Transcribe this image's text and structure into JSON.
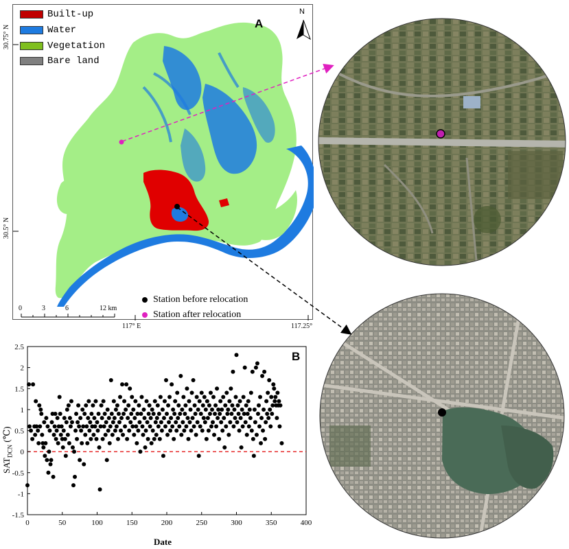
{
  "map_panel": {
    "letter": "A",
    "north_label": "N",
    "legend": [
      {
        "label": "Built-up",
        "color": "#c00000"
      },
      {
        "label": "Water",
        "color": "#1e7be0"
      },
      {
        "label": "Vegetation",
        "color": "#7fbf1f"
      },
      {
        "label": "Bare land",
        "color": "#808080"
      }
    ],
    "lat_ticks": [
      "30.75° N",
      "30.5° N"
    ],
    "lon_ticks": [
      "117° E",
      "117.25°"
    ],
    "scale_ticks": [
      "0",
      "3",
      "6",
      "12 km"
    ],
    "stations": [
      {
        "label": "Station before relocation",
        "color": "#000000"
      },
      {
        "label": "Station after relocation",
        "color": "#e020c0"
      }
    ],
    "colors": {
      "vegetation": "#a4ee87",
      "water": "#1e7be0",
      "built": "#e00000",
      "link_after": "#e020c0",
      "link_before": "#000000"
    }
  },
  "chart_panel": {
    "letter": "B"
  },
  "chart_data": {
    "type": "scatter",
    "xlabel": "Date",
    "ylabel": "SAT",
    "ylabel_sub": "DCN",
    "ylabel_unit": "(℃)",
    "xlim": [
      0,
      400
    ],
    "ylim": [
      -1.5,
      2.5
    ],
    "x_ticks": [
      "0",
      "50",
      "100",
      "150",
      "200",
      "250",
      "300",
      "350",
      "400"
    ],
    "y_ticks": [
      "-1.5",
      "-1",
      "-0.5",
      "0",
      "0.5",
      "1",
      "1.5",
      "2",
      "2.5"
    ],
    "reference_line": {
      "y": 0,
      "color": "#e00000",
      "style": "dashed"
    },
    "grid": false,
    "points": [
      [
        0,
        -0.8
      ],
      [
        2,
        1.6
      ],
      [
        3,
        0.6
      ],
      [
        5,
        0.5
      ],
      [
        7,
        0.3
      ],
      [
        8,
        1.6
      ],
      [
        10,
        0.6
      ],
      [
        11,
        0.4
      ],
      [
        12,
        1.2
      ],
      [
        13,
        0.6
      ],
      [
        15,
        0.5
      ],
      [
        16,
        0.2
      ],
      [
        17,
        1.1
      ],
      [
        18,
        0.6
      ],
      [
        19,
        1.0
      ],
      [
        20,
        0.9
      ],
      [
        21,
        0.4
      ],
      [
        22,
        0.2
      ],
      [
        23,
        0.1
      ],
      [
        24,
        0.7
      ],
      [
        25,
        -0.1
      ],
      [
        26,
        0.2
      ],
      [
        27,
        0.8
      ],
      [
        28,
        -0.2
      ],
      [
        29,
        0.6
      ],
      [
        30,
        -0.5
      ],
      [
        31,
        0.0
      ],
      [
        32,
        0.5
      ],
      [
        33,
        -0.3
      ],
      [
        34,
        -0.2
      ],
      [
        35,
        0.7
      ],
      [
        36,
        0.9
      ],
      [
        37,
        -0.6
      ],
      [
        38,
        0.4
      ],
      [
        39,
        0.6
      ],
      [
        40,
        0.9
      ],
      [
        41,
        0.3
      ],
      [
        42,
        0.5
      ],
      [
        43,
        0.8
      ],
      [
        44,
        0.2
      ],
      [
        45,
        0.6
      ],
      [
        46,
        1.3
      ],
      [
        47,
        0.9
      ],
      [
        48,
        0.4
      ],
      [
        49,
        0.6
      ],
      [
        50,
        0.3
      ],
      [
        51,
        0.1
      ],
      [
        52,
        0.5
      ],
      [
        53,
        0.8
      ],
      [
        54,
        0.3
      ],
      [
        55,
        -0.1
      ],
      [
        56,
        0.7
      ],
      [
        57,
        1.0
      ],
      [
        58,
        0.4
      ],
      [
        59,
        1.1
      ],
      [
        60,
        0.2
      ],
      [
        61,
        0.8
      ],
      [
        62,
        0.6
      ],
      [
        63,
        1.2
      ],
      [
        64,
        0.7
      ],
      [
        65,
        0.1
      ],
      [
        66,
        -0.8
      ],
      [
        67,
        0.0
      ],
      [
        68,
        -0.6
      ],
      [
        69,
        0.5
      ],
      [
        70,
        0.9
      ],
      [
        71,
        0.3
      ],
      [
        72,
        0.7
      ],
      [
        73,
        1.1
      ],
      [
        74,
        0.6
      ],
      [
        75,
        -0.2
      ],
      [
        76,
        0.8
      ],
      [
        77,
        0.5
      ],
      [
        78,
        0.2
      ],
      [
        79,
        1.0
      ],
      [
        80,
        0.6
      ],
      [
        81,
        -0.3
      ],
      [
        82,
        0.9
      ],
      [
        83,
        0.4
      ],
      [
        84,
        1.1
      ],
      [
        85,
        0.6
      ],
      [
        86,
        0.2
      ],
      [
        87,
        0.8
      ],
      [
        88,
        1.2
      ],
      [
        89,
        0.5
      ],
      [
        90,
        0.7
      ],
      [
        91,
        0.3
      ],
      [
        92,
        0.9
      ],
      [
        93,
        0.6
      ],
      [
        94,
        1.1
      ],
      [
        95,
        0.4
      ],
      [
        96,
        0.8
      ],
      [
        97,
        0.6
      ],
      [
        98,
        1.2
      ],
      [
        99,
        0.3
      ],
      [
        100,
        0.7
      ],
      [
        101,
        0.5
      ],
      [
        102,
        0.9
      ],
      [
        103,
        0.1
      ],
      [
        104,
        -0.9
      ],
      [
        105,
        0.6
      ],
      [
        106,
        1.1
      ],
      [
        107,
        0.8
      ],
      [
        108,
        0.3
      ],
      [
        109,
        1.2
      ],
      [
        110,
        0.6
      ],
      [
        111,
        0.9
      ],
      [
        112,
        0.4
      ],
      [
        113,
        0.7
      ],
      [
        114,
        -0.2
      ],
      [
        115,
        1.0
      ],
      [
        116,
        0.5
      ],
      [
        117,
        0.8
      ],
      [
        118,
        0.2
      ],
      [
        119,
        0.6
      ],
      [
        120,
        1.7
      ],
      [
        121,
        0.9
      ],
      [
        122,
        0.4
      ],
      [
        123,
        0.7
      ],
      [
        124,
        1.2
      ],
      [
        125,
        0.8
      ],
      [
        126,
        0.5
      ],
      [
        127,
        1.0
      ],
      [
        128,
        0.6
      ],
      [
        129,
        1.1
      ],
      [
        130,
        0.3
      ],
      [
        131,
        0.9
      ],
      [
        132,
        0.7
      ],
      [
        133,
        1.3
      ],
      [
        134,
        0.5
      ],
      [
        135,
        0.8
      ],
      [
        136,
        1.6
      ],
      [
        137,
        0.4
      ],
      [
        138,
        0.9
      ],
      [
        139,
        1.2
      ],
      [
        140,
        0.6
      ],
      [
        141,
        1.0
      ],
      [
        142,
        1.6
      ],
      [
        143,
        0.3
      ],
      [
        144,
        0.8
      ],
      [
        145,
        1.1
      ],
      [
        146,
        0.5
      ],
      [
        147,
        1.5
      ],
      [
        148,
        0.7
      ],
      [
        149,
        0.9
      ],
      [
        150,
        1.3
      ],
      [
        151,
        0.6
      ],
      [
        152,
        1.0
      ],
      [
        153,
        0.4
      ],
      [
        154,
        0.8
      ],
      [
        155,
        1.2
      ],
      [
        156,
        0.6
      ],
      [
        157,
        0.2
      ],
      [
        158,
        0.9
      ],
      [
        159,
        0.5
      ],
      [
        160,
        1.1
      ],
      [
        161,
        0.7
      ],
      [
        162,
        0.0
      ],
      [
        163,
        0.9
      ],
      [
        164,
        1.3
      ],
      [
        165,
        0.6
      ],
      [
        166,
        0.4
      ],
      [
        167,
        1.0
      ],
      [
        168,
        0.8
      ],
      [
        169,
        0.1
      ],
      [
        170,
        0.5
      ],
      [
        171,
        1.2
      ],
      [
        172,
        0.7
      ],
      [
        173,
        0.3
      ],
      [
        174,
        0.9
      ],
      [
        175,
        1.1
      ],
      [
        176,
        0.6
      ],
      [
        177,
        0.8
      ],
      [
        178,
        0.2
      ],
      [
        179,
        1.0
      ],
      [
        180,
        0.5
      ],
      [
        181,
        0.9
      ],
      [
        182,
        0.3
      ],
      [
        183,
        1.2
      ],
      [
        184,
        0.7
      ],
      [
        185,
        0.4
      ],
      [
        186,
        0.8
      ],
      [
        187,
        1.1
      ],
      [
        188,
        0.6
      ],
      [
        189,
        0.9
      ],
      [
        190,
        0.3
      ],
      [
        191,
        1.3
      ],
      [
        192,
        0.7
      ],
      [
        193,
        0.5
      ],
      [
        194,
        1.0
      ],
      [
        195,
        -0.1
      ],
      [
        196,
        0.8
      ],
      [
        197,
        1.2
      ],
      [
        198,
        0.6
      ],
      [
        199,
        1.7
      ],
      [
        200,
        0.9
      ],
      [
        201,
        0.4
      ],
      [
        202,
        1.1
      ],
      [
        203,
        0.7
      ],
      [
        204,
        1.3
      ],
      [
        205,
        0.5
      ],
      [
        206,
        0.8
      ],
      [
        207,
        1.6
      ],
      [
        208,
        0.6
      ],
      [
        209,
        1.0
      ],
      [
        210,
        0.3
      ],
      [
        211,
        0.9
      ],
      [
        212,
        1.2
      ],
      [
        213,
        0.7
      ],
      [
        214,
        0.5
      ],
      [
        215,
        1.4
      ],
      [
        216,
        0.8
      ],
      [
        217,
        1.1
      ],
      [
        218,
        0.6
      ],
      [
        219,
        0.9
      ],
      [
        220,
        1.8
      ],
      [
        221,
        0.4
      ],
      [
        222,
        1.0
      ],
      [
        223,
        0.7
      ],
      [
        224,
        1.3
      ],
      [
        225,
        0.5
      ],
      [
        226,
        0.9
      ],
      [
        227,
        1.1
      ],
      [
        228,
        0.6
      ],
      [
        229,
        1.5
      ],
      [
        230,
        0.8
      ],
      [
        231,
        0.3
      ],
      [
        232,
        1.2
      ],
      [
        233,
        0.7
      ],
      [
        234,
        1.0
      ],
      [
        235,
        0.5
      ],
      [
        236,
        1.4
      ],
      [
        237,
        0.8
      ],
      [
        238,
        1.7
      ],
      [
        239,
        0.6
      ],
      [
        240,
        1.1
      ],
      [
        241,
        0.9
      ],
      [
        242,
        0.4
      ],
      [
        243,
        1.3
      ],
      [
        244,
        0.7
      ],
      [
        245,
        1.0
      ],
      [
        246,
        -0.1
      ],
      [
        247,
        1.2
      ],
      [
        248,
        0.6
      ],
      [
        249,
        0.9
      ],
      [
        250,
        1.4
      ],
      [
        251,
        0.5
      ],
      [
        252,
        1.1
      ],
      [
        253,
        0.8
      ],
      [
        254,
        1.3
      ],
      [
        255,
        0.7
      ],
      [
        256,
        1.0
      ],
      [
        257,
        0.3
      ],
      [
        258,
        1.2
      ],
      [
        259,
        0.8
      ],
      [
        260,
        0.5
      ],
      [
        261,
        1.1
      ],
      [
        262,
        0.9
      ],
      [
        263,
        1.4
      ],
      [
        264,
        0.6
      ],
      [
        265,
        1.0
      ],
      [
        266,
        0.7
      ],
      [
        267,
        1.3
      ],
      [
        268,
        0.4
      ],
      [
        269,
        0.9
      ],
      [
        270,
        1.1
      ],
      [
        271,
        0.6
      ],
      [
        272,
        1.5
      ],
      [
        273,
        0.8
      ],
      [
        274,
        1.0
      ],
      [
        275,
        0.3
      ],
      [
        276,
        0.9
      ],
      [
        277,
        1.2
      ],
      [
        278,
        0.7
      ],
      [
        279,
        1.0
      ],
      [
        280,
        0.5
      ],
      [
        281,
        1.3
      ],
      [
        282,
        0.8
      ],
      [
        283,
        0.1
      ],
      [
        284,
        1.1
      ],
      [
        285,
        0.6
      ],
      [
        286,
        1.4
      ],
      [
        287,
        0.9
      ],
      [
        288,
        1.0
      ],
      [
        289,
        0.4
      ],
      [
        290,
        1.2
      ],
      [
        291,
        0.7
      ],
      [
        292,
        1.5
      ],
      [
        293,
        0.9
      ],
      [
        294,
        1.1
      ],
      [
        295,
        1.9
      ],
      [
        296,
        0.6
      ],
      [
        297,
        1.0
      ],
      [
        298,
        0.8
      ],
      [
        299,
        1.3
      ],
      [
        300,
        2.3
      ],
      [
        301,
        0.7
      ],
      [
        302,
        1.1
      ],
      [
        303,
        0.9
      ],
      [
        304,
        0.5
      ],
      [
        305,
        1.2
      ],
      [
        306,
        0.8
      ],
      [
        307,
        0.1
      ],
      [
        308,
        1.0
      ],
      [
        309,
        0.6
      ],
      [
        310,
        1.3
      ],
      [
        311,
        0.9
      ],
      [
        312,
        2.0
      ],
      [
        313,
        0.7
      ],
      [
        314,
        1.1
      ],
      [
        315,
        0.4
      ],
      [
        316,
        0.9
      ],
      [
        317,
        1.2
      ],
      [
        318,
        0.6
      ],
      [
        319,
        1.0
      ],
      [
        320,
        0.8
      ],
      [
        321,
        1.4
      ],
      [
        322,
        0.5
      ],
      [
        323,
        1.9
      ],
      [
        324,
        0.3
      ],
      [
        325,
        -0.1
      ],
      [
        326,
        1.0
      ],
      [
        327,
        0.7
      ],
      [
        328,
        2.0
      ],
      [
        329,
        0.4
      ],
      [
        330,
        2.1
      ],
      [
        331,
        0.9
      ],
      [
        332,
        1.1
      ],
      [
        333,
        0.6
      ],
      [
        334,
        1.3
      ],
      [
        335,
        0.2
      ],
      [
        336,
        0.8
      ],
      [
        337,
        1.8
      ],
      [
        338,
        0.5
      ],
      [
        339,
        1.0
      ],
      [
        340,
        1.9
      ],
      [
        341,
        0.3
      ],
      [
        342,
        0.7
      ],
      [
        343,
        1.2
      ],
      [
        344,
        0.9
      ],
      [
        345,
        1.4
      ],
      [
        346,
        0.8
      ],
      [
        347,
        1.7
      ],
      [
        348,
        1.0
      ],
      [
        349,
        0.6
      ],
      [
        350,
        1.3
      ],
      [
        351,
        0.9
      ],
      [
        352,
        1.1
      ],
      [
        353,
        1.6
      ],
      [
        354,
        1.5
      ],
      [
        355,
        1.2
      ],
      [
        356,
        1.3
      ],
      [
        357,
        1.1
      ],
      [
        358,
        0.8
      ],
      [
        359,
        1.4
      ],
      [
        360,
        1.1
      ],
      [
        361,
        1.2
      ],
      [
        362,
        0.6
      ],
      [
        363,
        1.1
      ],
      [
        365,
        0.2
      ]
    ]
  },
  "images": {
    "top_circle": "satellite image of relocated station site",
    "bottom_circle": "satellite image of original urban station site"
  }
}
